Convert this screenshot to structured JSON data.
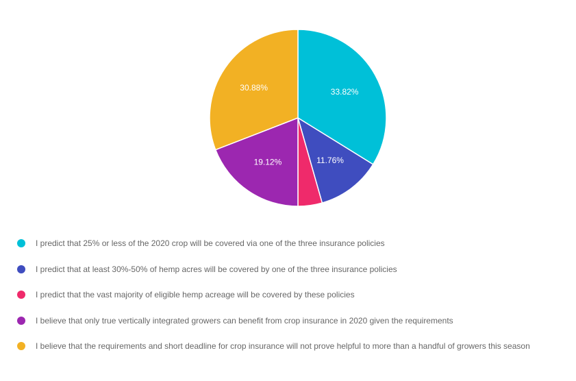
{
  "chart_data": {
    "type": "pie",
    "title": "",
    "series": [
      {
        "name": "",
        "values": [
          33.82,
          11.76,
          4.42,
          19.12,
          30.88
        ]
      }
    ],
    "categories": [
      "I predict that 25% or less of the 2020 crop will be covered via one of the three insurance policies",
      "I predict that at least 30%-50% of hemp acres will be covered by one of the three insurance policies",
      "I predict that the vast majority of eligible hemp acreage will be covered by these policies",
      "I believe that only true vertically integrated growers can benefit from crop insurance in 2020 given the requirements",
      "I believe that the requirements and short deadline for crop insurance will not prove helpful to more than a handful of growers this season"
    ],
    "data_labels": [
      "33.82%",
      "11.76%",
      "",
      "19.12%",
      "30.88%"
    ],
    "colors": [
      "#00c0d8",
      "#3f4dbf",
      "#ef2a6b",
      "#9c27b0",
      "#f2b124"
    ],
    "legend_position": "bottom-left",
    "start_angle": "12 o'clock",
    "direction": "clockwise"
  }
}
